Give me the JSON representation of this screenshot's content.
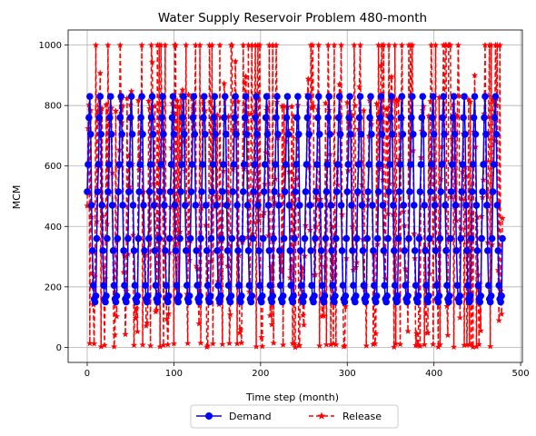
{
  "chart_data": {
    "type": "line",
    "title": "Water Supply Reservoir Problem 480-month",
    "xlabel": "Time step (month)",
    "ylabel": "MCM",
    "xlim": [
      -22,
      502
    ],
    "ylim": [
      -50,
      1050
    ],
    "x_ticks": [
      0,
      100,
      200,
      300,
      400,
      500
    ],
    "y_ticks": [
      0,
      200,
      400,
      600,
      800,
      1000
    ],
    "grid": true,
    "legend": {
      "placement": "bottom-center-outside",
      "columns": 2
    },
    "demand_pattern": [
      515,
      605,
      760,
      830,
      705,
      470,
      320,
      205,
      160,
      150,
      170,
      360
    ],
    "series": [
      {
        "name": "Demand",
        "color": "#0000ff",
        "line_style": "solid",
        "marker": "circle"
      },
      {
        "name": "Release",
        "color": "#ff0000",
        "line_style": "dashed",
        "marker": "star"
      }
    ]
  }
}
